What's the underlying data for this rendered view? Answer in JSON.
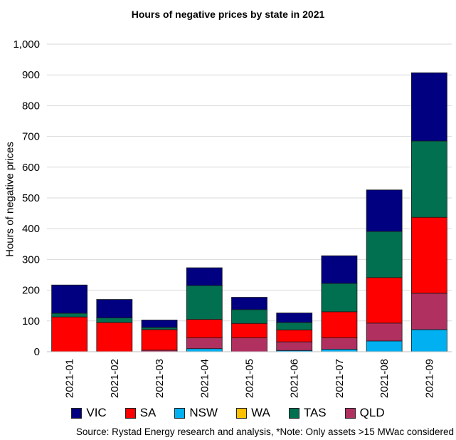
{
  "chart_data": {
    "type": "bar",
    "stacked": true,
    "title": "Hours of negative prices by state in 2021",
    "xlabel": "",
    "ylabel": "Hours of negative prices",
    "ylim": [
      0,
      1000
    ],
    "yticks": [
      0,
      100,
      200,
      300,
      400,
      500,
      600,
      700,
      800,
      900,
      1000
    ],
    "ytick_labels": [
      "0",
      "100",
      "200",
      "300",
      "400",
      "500",
      "600",
      "700",
      "800",
      "900",
      "1,000"
    ],
    "grid": true,
    "legend_position": "bottom",
    "categories": [
      "2021-01",
      "2021-02",
      "2021-03",
      "2021-04",
      "2021-05",
      "2021-06",
      "2021-07",
      "2021-08",
      "2021-09"
    ],
    "series": [
      {
        "name": "NSW",
        "color": "#00b0f0",
        "values": [
          0,
          0,
          0,
          10,
          0,
          4,
          8,
          35,
          72
        ]
      },
      {
        "name": "WA",
        "color": "#ffc000",
        "values": [
          0,
          0,
          0,
          0,
          0,
          0,
          0,
          0,
          0
        ]
      },
      {
        "name": "QLD",
        "color": "#b03060",
        "values": [
          0,
          0,
          5,
          35,
          45,
          28,
          37,
          58,
          118
        ]
      },
      {
        "name": "SA",
        "color": "#ff0000",
        "values": [
          113,
          95,
          67,
          60,
          47,
          39,
          85,
          148,
          247
        ]
      },
      {
        "name": "TAS",
        "color": "#007050",
        "values": [
          12,
          15,
          7,
          110,
          45,
          24,
          92,
          150,
          248
        ]
      },
      {
        "name": "VIC",
        "color": "#000080",
        "values": [
          92,
          60,
          24,
          58,
          40,
          31,
          90,
          135,
          222
        ]
      }
    ]
  },
  "legend": [
    {
      "label": "VIC",
      "color": "#000080"
    },
    {
      "label": "SA",
      "color": "#ff0000"
    },
    {
      "label": "NSW",
      "color": "#00b0f0"
    },
    {
      "label": "WA",
      "color": "#ffc000"
    },
    {
      "label": "TAS",
      "color": "#007050"
    },
    {
      "label": "QLD",
      "color": "#b03060"
    }
  ],
  "source_note": "Source: Rystad Energy research and analysis, *Note:  Only assets >15 MWac considered"
}
